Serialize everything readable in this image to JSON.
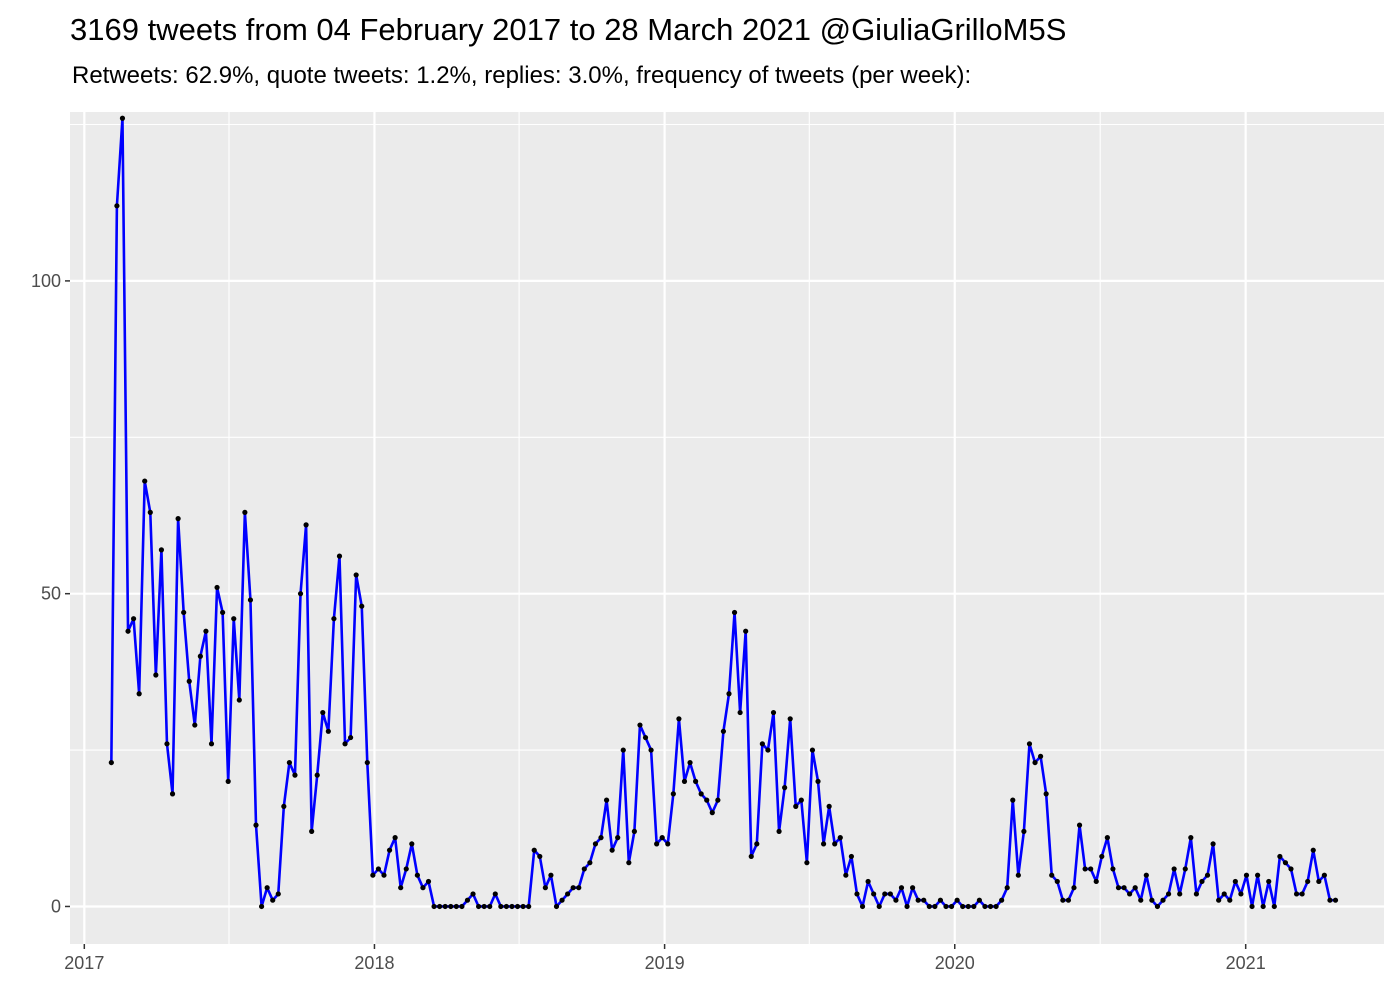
{
  "chart_data": {
    "type": "line",
    "title": "3169 tweets from 04 February 2017 to 28 March 2021 @GiuliaGrilloM5S",
    "subtitle": "Retweets: 62.9%, quote tweets: 1.2%, replies: 3.0%, frequency of tweets (per week):",
    "xlabel": "",
    "ylabel": "",
    "x_start": "2017-02-04",
    "x_end": "2021-03-28",
    "x_interval": "week",
    "xlim": [
      "2016-12-14",
      "2021-06-24"
    ],
    "ylim": [
      -6,
      127
    ],
    "x_ticks": [
      "2017",
      "2018",
      "2019",
      "2020",
      "2021"
    ],
    "y_ticks": [
      0,
      50,
      100
    ],
    "grid": true,
    "line_color": "#0000ff",
    "point_color": "#000000",
    "panel_color": "#ebebeb",
    "series": [
      {
        "values": [
          23,
          112,
          126,
          44,
          46,
          34,
          68,
          63,
          37,
          57,
          26,
          18,
          62,
          47,
          36,
          29,
          40,
          44,
          26,
          51,
          47,
          20,
          46,
          33,
          63,
          49,
          13,
          0,
          3,
          1,
          2,
          16,
          23,
          21,
          50,
          61,
          12,
          21,
          31,
          28,
          46,
          56,
          26,
          27,
          53,
          48,
          23,
          5,
          6,
          5,
          9,
          11,
          3,
          6,
          10,
          5,
          3,
          4,
          0,
          0,
          0,
          0,
          0,
          0,
          1,
          2,
          0,
          0,
          0,
          2,
          0,
          0,
          0,
          0,
          0,
          0,
          9,
          8,
          3,
          5,
          0,
          1,
          2,
          3,
          3,
          6,
          7,
          10,
          11,
          17,
          9,
          11,
          25,
          7,
          12,
          29,
          27,
          25,
          10,
          11,
          10,
          18,
          30,
          20,
          23,
          20,
          18,
          17,
          15,
          17,
          28,
          34,
          47,
          31,
          44,
          8,
          10,
          26,
          25,
          31,
          12,
          19,
          30,
          16,
          17,
          7,
          25,
          20,
          10,
          16,
          10,
          11,
          5,
          8,
          2,
          0,
          4,
          2,
          0,
          2,
          2,
          1,
          3,
          0,
          3,
          1,
          1,
          0,
          0,
          1,
          0,
          0,
          1,
          0,
          0,
          0,
          1,
          0,
          0,
          0,
          1,
          3,
          17,
          5,
          12,
          26,
          23,
          24,
          18,
          5,
          4,
          1,
          1,
          3,
          13,
          6,
          6,
          4,
          8,
          11,
          6,
          3,
          3,
          2,
          3,
          1,
          5,
          1,
          0,
          1,
          2,
          6,
          2,
          6,
          11,
          2,
          4,
          5,
          10,
          1,
          2,
          1,
          4,
          2,
          5,
          0,
          5,
          0,
          4,
          0,
          8,
          7,
          6,
          2,
          2,
          4,
          9,
          4,
          5,
          1,
          1
        ]
      }
    ]
  }
}
